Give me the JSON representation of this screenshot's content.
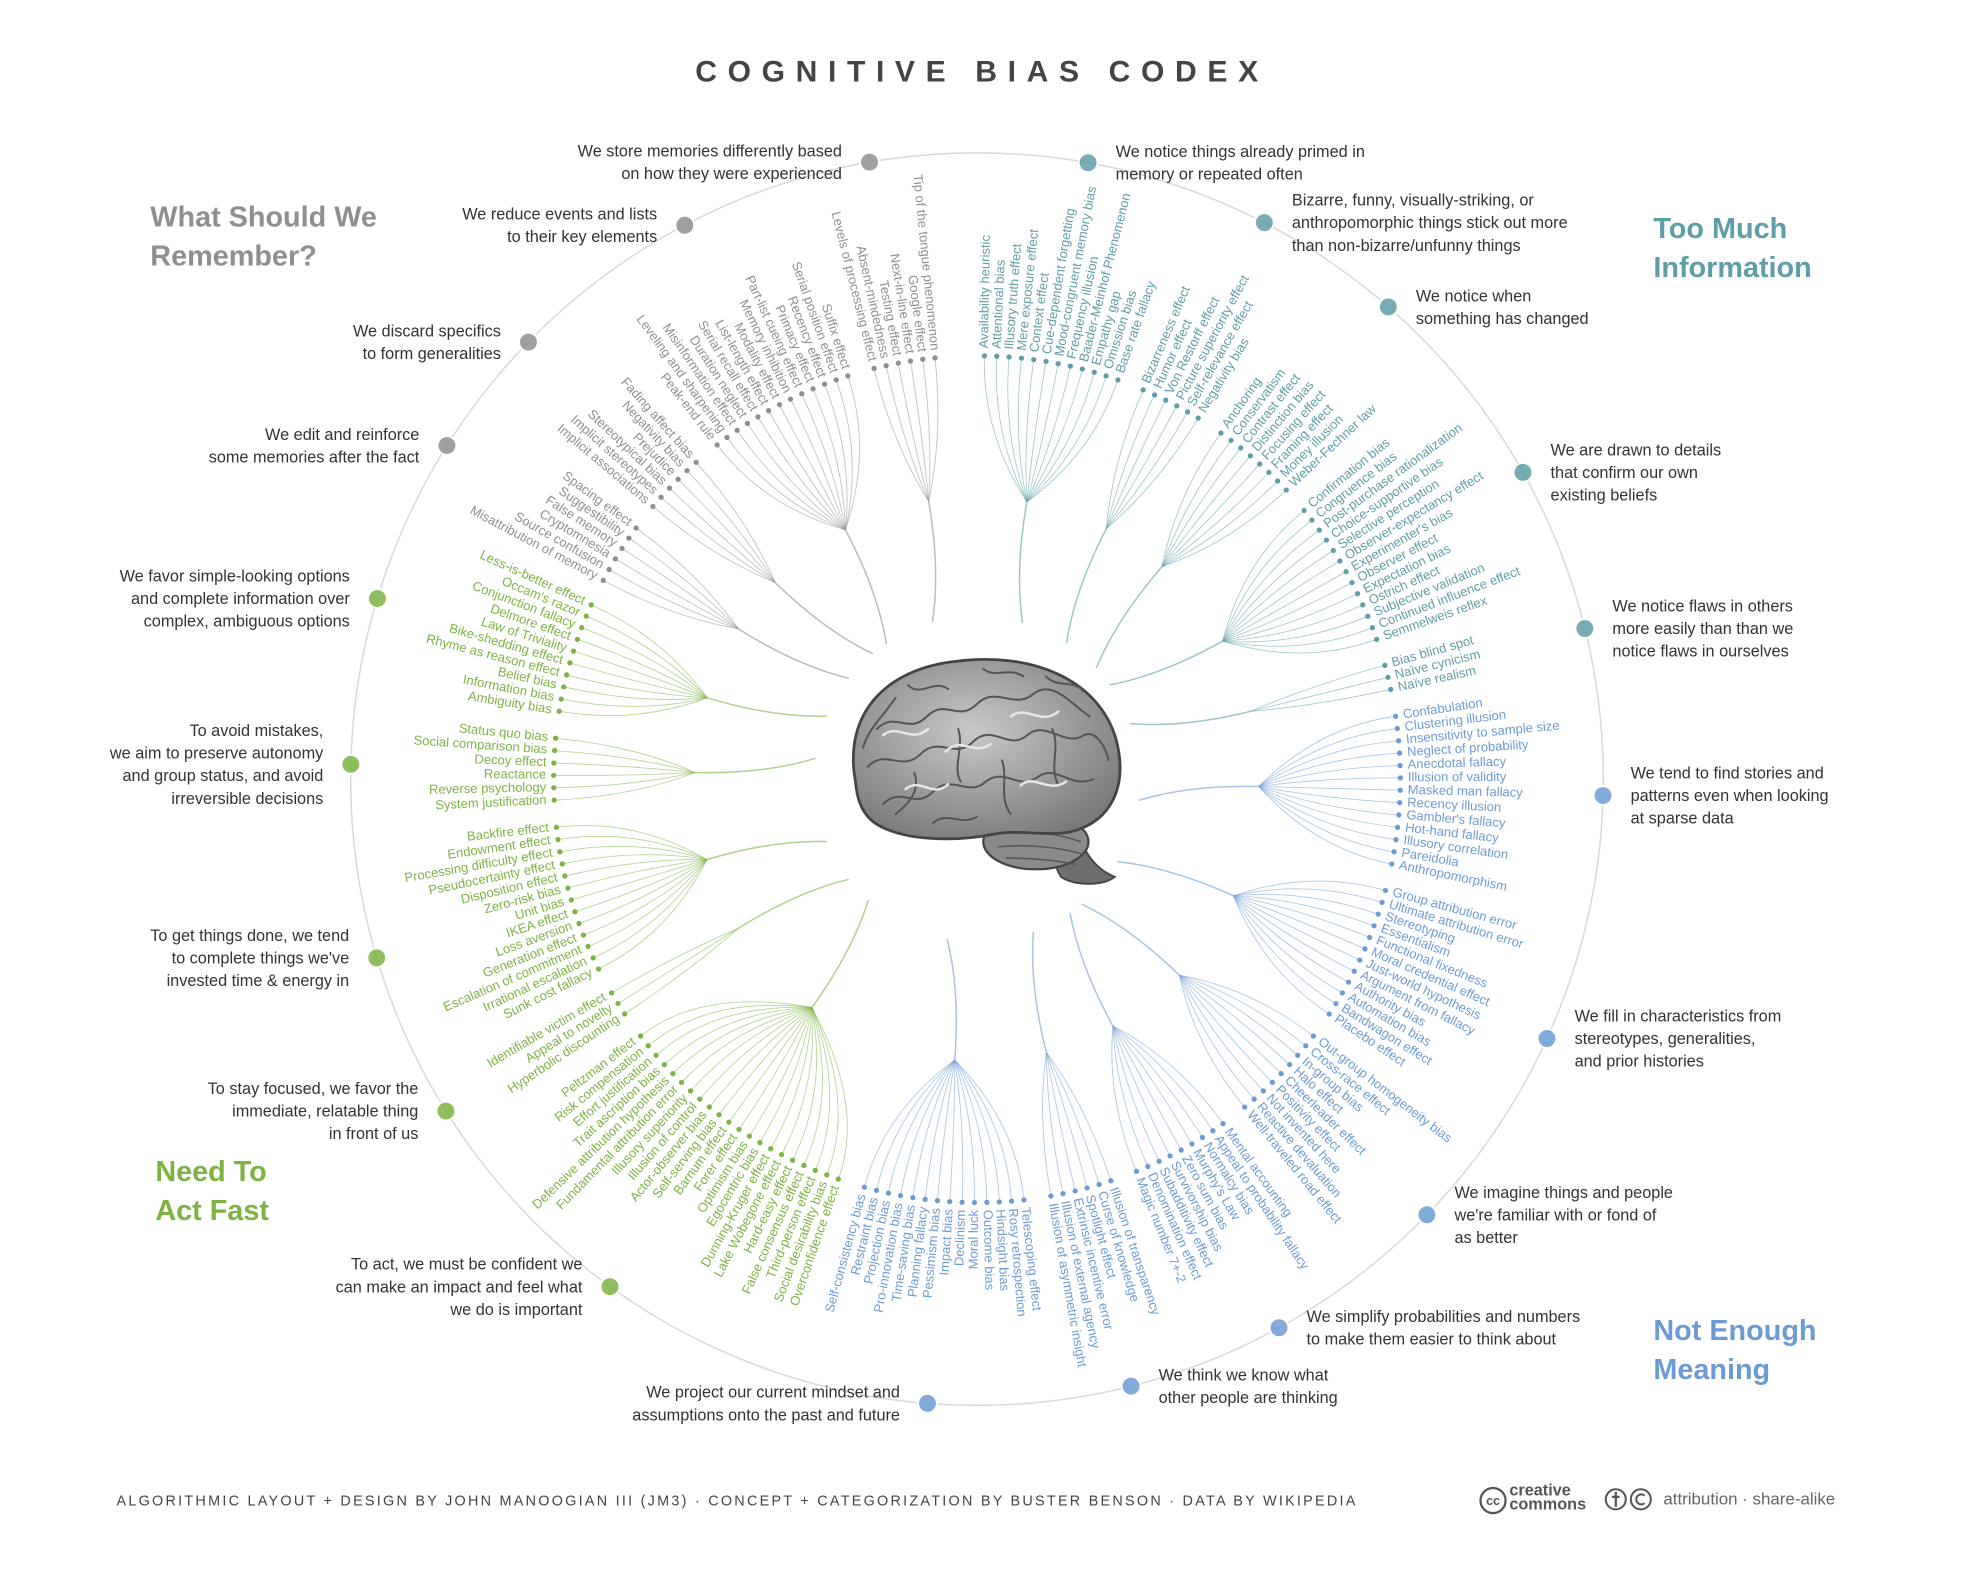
{
  "title": "COGNITIVE BIAS CODEX",
  "quadrants": [
    {
      "title": [
        "Too Much",
        "Information"
      ],
      "color": "#5f9ea6",
      "groups": [
        {
          "label": [
            "We notice things already primed in",
            "memory or repeated often"
          ],
          "biases": [
            "Availability heuristic",
            "Attentional bias",
            "Illusory truth effect",
            "Mere exposure effect",
            "Context effect",
            "Cue-dependent forgetting",
            "Mood-congruent memory bias",
            "Frequency illusion",
            "Baader-Meinhof Phenomenon",
            "Empathy gap",
            "Omission bias",
            "Base rate fallacy"
          ]
        },
        {
          "label": [
            "Bizarre, funny, visually-striking, or",
            "anthropomorphic things stick out more",
            "than non-bizarre/unfunny things"
          ],
          "biases": [
            "Bizarreness effect",
            "Humor effect",
            "Von Restorff effect",
            "Picture superiority effect",
            "Self-relevance effect",
            "Negativity bias"
          ]
        },
        {
          "label": [
            "We notice when",
            "something has changed"
          ],
          "biases": [
            "Anchoring",
            "Conservatism",
            "Contrast effect",
            "Distinction bias",
            "Focusing effect",
            "Framing effect",
            "Money illusion",
            "Weber-Fechner law"
          ]
        },
        {
          "label": [
            "We are drawn to details",
            "that confirm our own",
            "existing beliefs"
          ],
          "biases": [
            "Confirmation bias",
            "Congruence bias",
            "Post-purchase rationalization",
            "Choice-supportive bias",
            "Selective perception",
            "Observer-expectancy effect",
            "Experimenter's bias",
            "Observer effect",
            "Expectation bias",
            "Ostrich effect",
            "Subjective validation",
            "Continued influence effect",
            "Semmelweis reflex"
          ]
        },
        {
          "label": [
            "We notice flaws in others",
            "more easily than than we",
            "notice flaws in ourselves"
          ],
          "biases": [
            "Bias blind spot",
            "Naïve cynicism",
            "Naïve realism"
          ]
        }
      ]
    },
    {
      "title": [
        "Not Enough",
        "Meaning"
      ],
      "color": "#6c9bd3",
      "groups": [
        {
          "label": [
            "We tend to find stories and",
            "patterns even when looking",
            "at sparse data"
          ],
          "biases": [
            "Confabulation",
            "Clustering illusion",
            "Insensitivity to sample size",
            "Neglect of probability",
            "Anecdotal fallacy",
            "Illusion of validity",
            "Masked man fallacy",
            "Recency illusion",
            "Gambler's fallacy",
            "Hot-hand fallacy",
            "Illusory correlation",
            "Pareidolia",
            "Anthropomorphism"
          ]
        },
        {
          "label": [
            "We fill in characteristics from",
            "stereotypes, generalities,",
            "and prior histories"
          ],
          "biases": [
            "Group attribution error",
            "Ultimate attribution error",
            "Stereotyping",
            "Essentialism",
            "Functional fixedness",
            "Moral credential effect",
            "Just-world hypothesis",
            "Argument from fallacy",
            "Authority bias",
            "Automation bias",
            "Bandwagon effect",
            "Placebo effect"
          ]
        },
        {
          "label": [
            "We imagine things and people",
            "we're familiar with or fond of",
            "as better"
          ],
          "biases": [
            "Out-group homogeneity bias",
            "Cross-race effect",
            "In-group bias",
            "Halo effect",
            "Cheerleader effect",
            "Positivity effect",
            "Not invented here",
            "Reactive devaluation",
            "Well-traveled road effect"
          ]
        },
        {
          "label": [
            "We simplify probabilities and numbers",
            "to make them easier to think about"
          ],
          "biases": [
            "Mental accounting",
            "Appeal to probability fallacy",
            "Normalcy bias",
            "Murphy's Law",
            "Zero sum bias",
            "Survivorship bias",
            "Subadditivity effect",
            "Denomination effect",
            "Magic number 7+-2"
          ]
        },
        {
          "label": [
            "We think we know what",
            "other people are thinking"
          ],
          "biases": [
            "Illusion of transparency",
            "Curse of knowledge",
            "Spotlight effect",
            "Extrinsic incentive error",
            "Illusion of external agency",
            "Illusion of asymmetric insight"
          ]
        },
        {
          "label": [
            "We project our current mindset and",
            "assumptions onto the past and future"
          ],
          "biases": [
            "Telescoping effect",
            "Rosy retrospection",
            "Hindsight bias",
            "Outcome bias",
            "Moral luck",
            "Declinism",
            "Impact bias",
            "Pessimism bias",
            "Planning fallacy",
            "Time-saving bias",
            "Pro-innovation bias",
            "Projection bias",
            "Restraint bias",
            "Self-consistency bias"
          ]
        }
      ]
    },
    {
      "title": [
        "Need To",
        "Act Fast"
      ],
      "color": "#7db343",
      "groups": [
        {
          "label": [
            "To act, we must be confident we",
            "can make an impact and feel what",
            "we do is important"
          ],
          "biases": [
            "Overconfidence effect",
            "Social desirability bias",
            "Third-person effect",
            "False consensus effect",
            "Hard-easy effect",
            "Lake Wobegone effect",
            "Dunning-Kruger effect",
            "Egocentric bias",
            "Optimism bias",
            "Forer effect",
            "Barnum effect",
            "Self-serving bias",
            "Actor-observer bias",
            "Illusion of control",
            "Illusory superiority",
            "Fundamental attribution error",
            "Defensive attribution hypothesis",
            "Trait ascription bias",
            "Effort justification",
            "Risk compensation",
            "Peltzman effect"
          ]
        },
        {
          "label": [
            "To stay focused, we favor the",
            "immediate, relatable thing",
            "in front of us"
          ],
          "biases": [
            "Hyperbolic discounting",
            "Appeal to novelty",
            "Identifiable victim effect"
          ]
        },
        {
          "label": [
            "To get things done, we tend",
            "to complete things we've",
            "invested time & energy in"
          ],
          "biases": [
            "Sunk cost fallacy",
            "Irrational escalation",
            "Escalation of commitment",
            "Generation effect",
            "Loss aversion",
            "IKEA effect",
            "Unit bias",
            "Zero-risk bias",
            "Disposition effect",
            "Pseudocertainty effect",
            "Processing difficulty effect",
            "Endowment effect",
            "Backfire effect"
          ]
        },
        {
          "label": [
            "To avoid mistakes,",
            "we aim to preserve autonomy",
            "and group status, and avoid",
            "irreversible decisions"
          ],
          "biases": [
            "System justification",
            "Reverse psychology",
            "Reactance",
            "Decoy effect",
            "Social comparison bias",
            "Status quo bias"
          ]
        },
        {
          "label": [
            "We favor simple-looking options",
            "and complete information over",
            "complex, ambiguous options"
          ],
          "biases": [
            "Ambiguity bias",
            "Information bias",
            "Belief bias",
            "Rhyme as reason effect",
            "Bike-shedding effect",
            "Law of Triviality",
            "Delmore effect",
            "Conjunction fallacy",
            "Occam's razor",
            "Less-is-better effect"
          ]
        }
      ]
    },
    {
      "title": [
        "What Should We",
        "Remember?"
      ],
      "color": "#8f8f8f",
      "groups": [
        {
          "label": [
            "We edit and reinforce",
            "some memories after the fact"
          ],
          "biases": [
            "Misattribution of memory",
            "Source confusion",
            "Cryptomnesia",
            "False memory",
            "Suggestibility",
            "Spacing effect"
          ]
        },
        {
          "label": [
            "We discard specifics",
            "to form generalities"
          ],
          "biases": [
            "Implicit associations",
            "Implicit stereotypes",
            "Stereotypical bias",
            "Prejudice",
            "Negativity bias",
            "Fading affect bias"
          ]
        },
        {
          "label": [
            "We reduce events and lists",
            "to their key elements"
          ],
          "biases": [
            "Peak-end rule",
            "Leveling and sharpening",
            "Misinformation effect",
            "Duration neglect",
            "Serial recall effect",
            "List-length effect",
            "Modality effect",
            "Memory inhibition",
            "Part-list cueing effect",
            "Primacy effect",
            "Recency effect",
            "Serial position effect",
            "Suffix effect"
          ]
        },
        {
          "label": [
            "We store memories differently based",
            "on how they were experienced"
          ],
          "biases": [
            "Levels of processing effect",
            "Absent-mindedness",
            "Testing effect",
            "Next-in-line effect",
            "Google effect",
            "Tip of the tongue phenomenon"
          ]
        }
      ]
    }
  ],
  "footer": {
    "credits": "ALGORITHMIC LAYOUT + DESIGN BY JOHN MANOOGIAN III (JM3)  ·  CONCEPT + CATEGORIZATION BY BUSTER BENSON  ·  DATA BY WIKIPEDIA",
    "license": {
      "logo": "cc",
      "name": [
        "creative",
        "commons"
      ],
      "terms": "attribution · share-alike"
    }
  }
}
